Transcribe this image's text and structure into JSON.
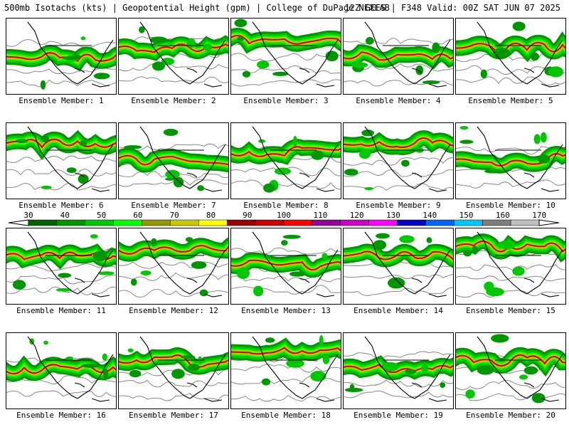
{
  "header": {
    "left": "500mb Isotachs (kts) | Geopotential Height (gpm) | College of DuPage NEXLAB",
    "right": "12Z GEFS | F348 Valid: 00Z SAT JUN 07 2025"
  },
  "panels": [
    {
      "label": "Ensemble Member: 1"
    },
    {
      "label": "Ensemble Member: 2"
    },
    {
      "label": "Ensemble Member: 3"
    },
    {
      "label": "Ensemble Member: 4"
    },
    {
      "label": "Ensemble Member: 5"
    },
    {
      "label": "Ensemble Member: 6"
    },
    {
      "label": "Ensemble Member: 7"
    },
    {
      "label": "Ensemble Member: 8"
    },
    {
      "label": "Ensemble Member: 9"
    },
    {
      "label": "Ensemble Member: 10"
    },
    {
      "label": "Ensemble Member: 11"
    },
    {
      "label": "Ensemble Member: 12"
    },
    {
      "label": "Ensemble Member: 13"
    },
    {
      "label": "Ensemble Member: 14"
    },
    {
      "label": "Ensemble Member: 15"
    },
    {
      "label": "Ensemble Member: 16"
    },
    {
      "label": "Ensemble Member: 17"
    },
    {
      "label": "Ensemble Member: 18"
    },
    {
      "label": "Ensemble Member: 19"
    },
    {
      "label": "Ensemble Member: 20"
    }
  ],
  "colorbar": {
    "tick_labels": [
      "30",
      "40",
      "50",
      "60",
      "70",
      "80",
      "90",
      "100",
      "110",
      "120",
      "130",
      "140",
      "150",
      "160",
      "170"
    ],
    "colors": [
      "#006400",
      "#009600",
      "#00c800",
      "#00ff00",
      "#969600",
      "#c8c800",
      "#ffff00",
      "#960000",
      "#c80000",
      "#ff0000",
      "#960096",
      "#c800c8",
      "#ff00ff",
      "#0000c8",
      "#0064ff",
      "#00c8ff",
      "#7f7f7f",
      "#bfbfbf"
    ]
  }
}
